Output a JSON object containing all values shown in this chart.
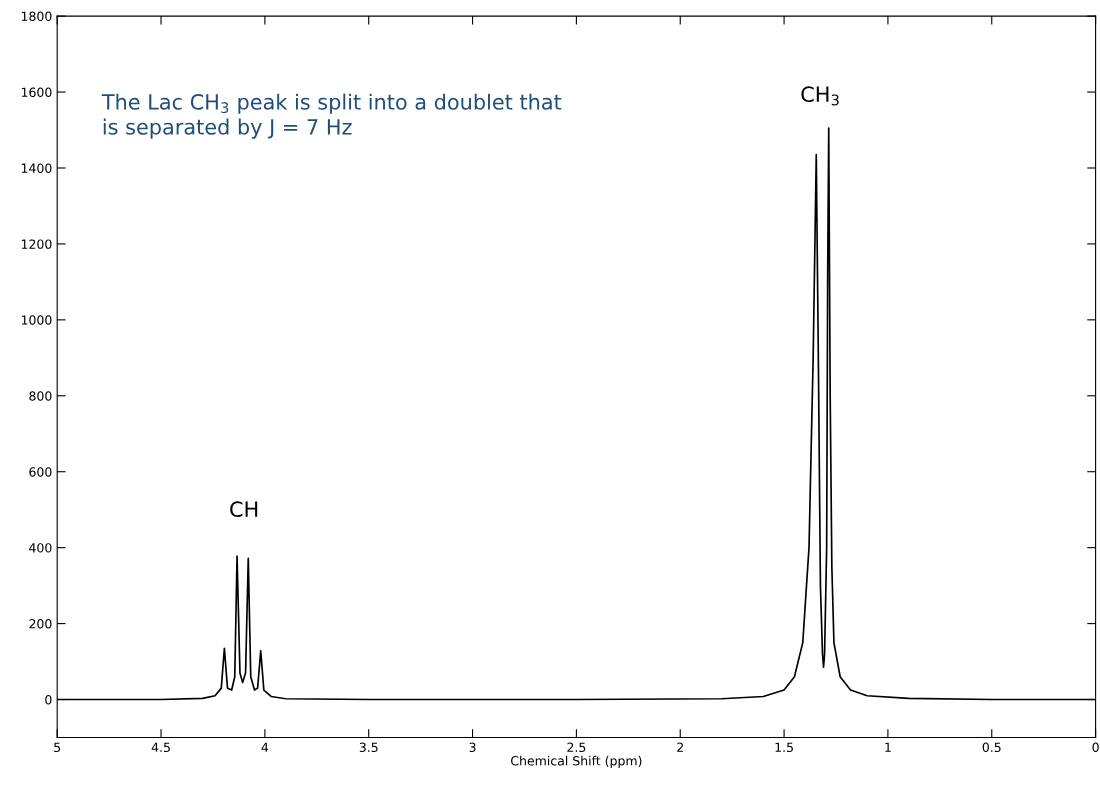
{
  "chart_data": {
    "type": "line",
    "xlabel": "Chemical Shift (ppm)",
    "xlim": [
      5,
      0
    ],
    "ylim": [
      -100,
      1800
    ],
    "xticks": [
      5,
      4.5,
      4,
      3.5,
      3,
      2.5,
      2,
      1.5,
      1,
      0.5,
      0
    ],
    "yticks": [
      0,
      200,
      400,
      600,
      800,
      1000,
      1200,
      1400,
      1600,
      1800
    ],
    "grid": false,
    "marker": "none",
    "line_style": "solid",
    "series": [
      {
        "color": "#000000",
        "x": [
          5,
          4.5,
          4.3,
          4.24,
          4.21,
          4.195,
          4.18,
          4.16,
          4.145,
          4.134,
          4.12,
          4.107,
          4.093,
          4.08,
          4.068,
          4.05,
          4.035,
          4.02,
          4.005,
          3.97,
          3.9,
          3.5,
          2.5,
          1.8,
          1.6,
          1.5,
          1.45,
          1.41,
          1.38,
          1.36,
          1.345,
          1.335,
          1.325,
          1.315,
          1.31,
          1.305,
          1.295,
          1.29,
          1.285,
          1.278,
          1.27,
          1.26,
          1.23,
          1.18,
          1.1,
          0.9,
          0.5,
          0
        ],
        "values": [
          0,
          0,
          3,
          10,
          30,
          135,
          30,
          25,
          60,
          378,
          70,
          45,
          70,
          372,
          60,
          25,
          30,
          128,
          25,
          8,
          2,
          0,
          0,
          2,
          8,
          25,
          60,
          150,
          400,
          900,
          1435,
          900,
          300,
          120,
          85,
          120,
          400,
          1130,
          1505,
          800,
          350,
          150,
          60,
          25,
          10,
          3,
          0,
          0
        ]
      }
    ],
    "annotations": [
      "CH",
      "CH$_{3}$",
      "The Lac CH$_{3}$ peak is split into a doublet that\nis separated by J = 7 Hz"
    ]
  }
}
